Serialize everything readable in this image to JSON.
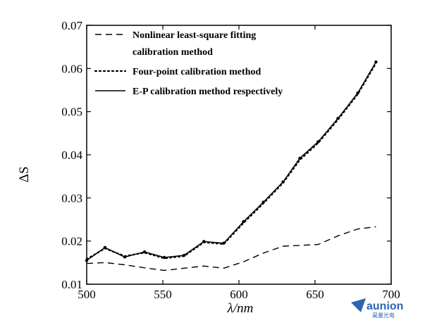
{
  "chart_data": {
    "type": "line",
    "xlabel": "λ/nm",
    "ylabel": "ΔS",
    "xlim": [
      500,
      700
    ],
    "ylim": [
      0.01,
      0.07
    ],
    "x_ticks": [
      "500",
      "550",
      "600",
      "650",
      "700"
    ],
    "y_ticks": [
      "0.01",
      "0.02",
      "0.03",
      "0.04",
      "0.05",
      "0.06",
      "0.07"
    ],
    "grid": false,
    "legend_position": "top-left",
    "series": [
      {
        "key": "nonlinear",
        "name": "Nonlinear least-square fitting calibration method",
        "style": "dashed",
        "x": [
          500,
          512,
          525,
          538,
          551,
          564,
          577,
          590,
          603,
          616,
          629,
          640,
          652,
          665,
          678,
          690
        ],
        "y": [
          0.0148,
          0.015,
          0.0145,
          0.0138,
          0.0132,
          0.0137,
          0.0142,
          0.0137,
          0.0152,
          0.0172,
          0.0188,
          0.019,
          0.0192,
          0.0212,
          0.0228,
          0.0233
        ]
      },
      {
        "key": "fourpoint",
        "name": "Four-point calibration method",
        "style": "dotted",
        "x": [
          500,
          512,
          525,
          538,
          551,
          564,
          577,
          590,
          603,
          616,
          629,
          640,
          652,
          665,
          678,
          690
        ],
        "y": [
          0.0158,
          0.0183,
          0.0165,
          0.0173,
          0.016,
          0.0165,
          0.0197,
          0.0193,
          0.0242,
          0.0287,
          0.0335,
          0.0388,
          0.0427,
          0.0481,
          0.054,
          0.0612
        ]
      },
      {
        "key": "ep",
        "name": "E-P calibration method respectively",
        "style": "solid",
        "x": [
          500,
          512,
          525,
          538,
          551,
          564,
          577,
          590,
          603,
          616,
          629,
          640,
          652,
          665,
          678,
          690
        ],
        "y": [
          0.0155,
          0.0185,
          0.0163,
          0.0175,
          0.0162,
          0.0167,
          0.0199,
          0.0195,
          0.0245,
          0.029,
          0.0337,
          0.0392,
          0.043,
          0.0484,
          0.0543,
          0.0615
        ]
      }
    ],
    "legend": [
      {
        "series": "nonlinear",
        "lines": [
          "Nonlinear least-square fitting",
          "calibration method"
        ]
      },
      {
        "series": "fourpoint",
        "lines": [
          "Four-point calibration method"
        ]
      },
      {
        "series": "ep",
        "lines": [
          "E-P calibration method respectively"
        ]
      }
    ]
  },
  "watermark": {
    "brand": "aunion",
    "sub": "昊量光电",
    "color": "#2a67b3"
  }
}
